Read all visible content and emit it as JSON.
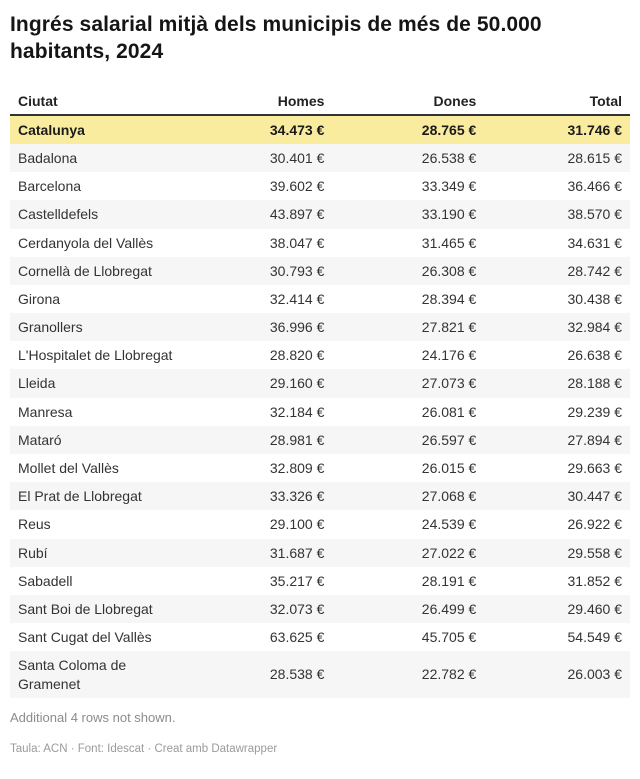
{
  "chart_data": {
    "type": "table",
    "title": "Ingrés salarial mitjà dels municipis de més de 50.000 habitants, 2024",
    "columns": [
      "Ciutat",
      "Homes",
      "Dones",
      "Total"
    ],
    "currency_suffix": "€",
    "number_format": "thousands-dot",
    "rows": [
      [
        "Catalunya",
        34473,
        28765,
        31746,
        true
      ],
      [
        "Badalona",
        30401,
        26538,
        28615,
        false
      ],
      [
        "Barcelona",
        39602,
        33349,
        36466,
        false
      ],
      [
        "Castelldefels",
        43897,
        33190,
        38570,
        false
      ],
      [
        "Cerdanyola del Vallès",
        38047,
        31465,
        34631,
        false
      ],
      [
        "Cornellà de Llobregat",
        30793,
        26308,
        28742,
        false
      ],
      [
        "Girona",
        32414,
        28394,
        30438,
        false
      ],
      [
        "Granollers",
        36996,
        27821,
        32984,
        false
      ],
      [
        "L'Hospitalet de Llobregat",
        28820,
        24176,
        26638,
        false
      ],
      [
        "Lleida",
        29160,
        27073,
        28188,
        false
      ],
      [
        "Manresa",
        32184,
        26081,
        29239,
        false
      ],
      [
        "Mataró",
        28981,
        26597,
        27894,
        false
      ],
      [
        "Mollet del Vallès",
        32809,
        26015,
        29663,
        false
      ],
      [
        "El Prat de Llobregat",
        33326,
        27068,
        30447,
        false
      ],
      [
        "Reus",
        29100,
        24539,
        26922,
        false
      ],
      [
        "Rubí",
        31687,
        27022,
        29558,
        false
      ],
      [
        "Sabadell",
        35217,
        28191,
        31852,
        false
      ],
      [
        "Sant Boi de Llobregat",
        32073,
        26499,
        29460,
        false
      ],
      [
        "Sant Cugat del Vallès",
        63625,
        45705,
        54549,
        false
      ],
      [
        "Santa Coloma de Gramenet",
        28538,
        22782,
        26003,
        false
      ]
    ]
  },
  "footer": {
    "note": "Additional 4 rows not shown.",
    "attribution": "Taula: ACN · Font: Idescat · Creat amb Datawrapper"
  },
  "colors": {
    "highlight_row": "#faec9f",
    "stripe_row": "#f6f6f6",
    "header_border": "#333333"
  }
}
